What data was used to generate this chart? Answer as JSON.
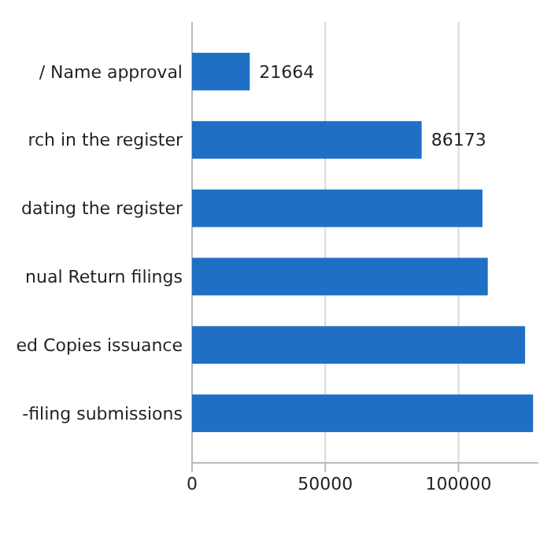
{
  "chart_data": {
    "type": "bar",
    "orientation": "horizontal",
    "categories": [
      "/ Name approval",
      "rch in the register",
      "dating the register",
      "nual Return filings",
      "ed Copies issuance",
      "-filing submissions"
    ],
    "values": [
      21664,
      86173,
      109000,
      111000,
      125000,
      128000
    ],
    "value_labels": [
      "21664",
      "86173",
      null,
      null,
      null,
      null
    ],
    "color": "#1f6fc5",
    "xlim": [
      0,
      130000
    ],
    "xticks": [
      0,
      50000,
      100000
    ],
    "grid": "x"
  }
}
